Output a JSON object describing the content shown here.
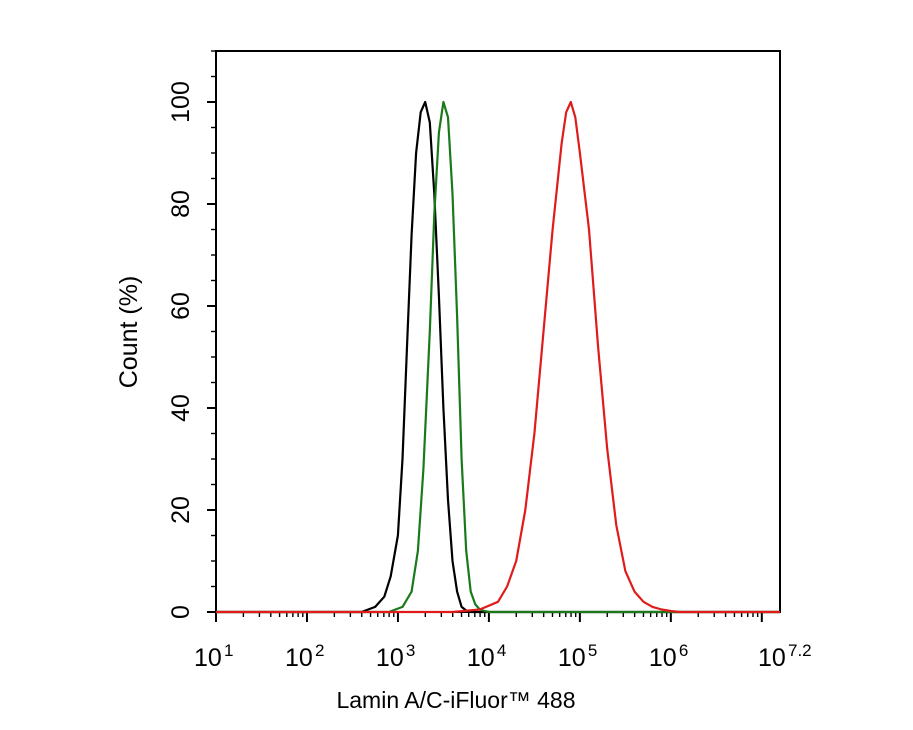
{
  "chart_data": {
    "type": "line",
    "title": "",
    "xlabel": "Lamin A/C-iFluor™ 488",
    "ylabel": "Count  (%)",
    "xscale": "log",
    "xlim_log10": [
      1,
      7.2
    ],
    "ylim": [
      0,
      110
    ],
    "grid": false,
    "y_ticks": [
      0,
      20,
      40,
      60,
      80,
      100
    ],
    "x_ticks": [
      {
        "base": "10",
        "exp": "1",
        "log10": 1
      },
      {
        "base": "10",
        "exp": "2",
        "log10": 2
      },
      {
        "base": "10",
        "exp": "3",
        "log10": 3
      },
      {
        "base": "10",
        "exp": "4",
        "log10": 4
      },
      {
        "base": "10",
        "exp": "5",
        "log10": 5
      },
      {
        "base": "10",
        "exp": "6",
        "log10": 6
      },
      {
        "base": "10",
        "exp": "7.2",
        "log10": 7.2
      }
    ],
    "series": [
      {
        "color": "#000000",
        "x_log10": [
          2.6,
          2.75,
          2.85,
          2.92,
          3.0,
          3.05,
          3.1,
          3.15,
          3.2,
          3.25,
          3.3,
          3.35,
          3.4,
          3.45,
          3.5,
          3.55,
          3.6,
          3.65,
          3.7,
          3.75,
          3.8
        ],
        "y": [
          0,
          1,
          3,
          7,
          15,
          30,
          52,
          74,
          90,
          98,
          100,
          96,
          82,
          62,
          40,
          22,
          10,
          4,
          1,
          0.3,
          0
        ]
      },
      {
        "color": "#1a7a1a",
        "x_log10": [
          2.9,
          3.05,
          3.15,
          3.22,
          3.28,
          3.35,
          3.4,
          3.45,
          3.5,
          3.55,
          3.6,
          3.65,
          3.7,
          3.75,
          3.8,
          3.85,
          3.9,
          3.95,
          4.0
        ],
        "y": [
          0,
          1,
          4,
          12,
          28,
          55,
          78,
          94,
          100,
          97,
          82,
          58,
          30,
          12,
          4,
          1.5,
          0.5,
          0.2,
          0
        ]
      },
      {
        "color": "#e01b1b",
        "x_log10": [
          3.6,
          3.9,
          4.1,
          4.2,
          4.3,
          4.4,
          4.5,
          4.6,
          4.7,
          4.8,
          4.85,
          4.9,
          4.95,
          5.0,
          5.1,
          5.2,
          5.3,
          5.4,
          5.5,
          5.6,
          5.7,
          5.8,
          5.9,
          6.0,
          6.1
        ],
        "y": [
          0,
          0.5,
          2,
          5,
          10,
          20,
          35,
          55,
          75,
          92,
          98,
          100,
          97,
          90,
          75,
          52,
          32,
          17,
          8,
          4,
          2,
          1,
          0.5,
          0.2,
          0
        ]
      }
    ]
  }
}
